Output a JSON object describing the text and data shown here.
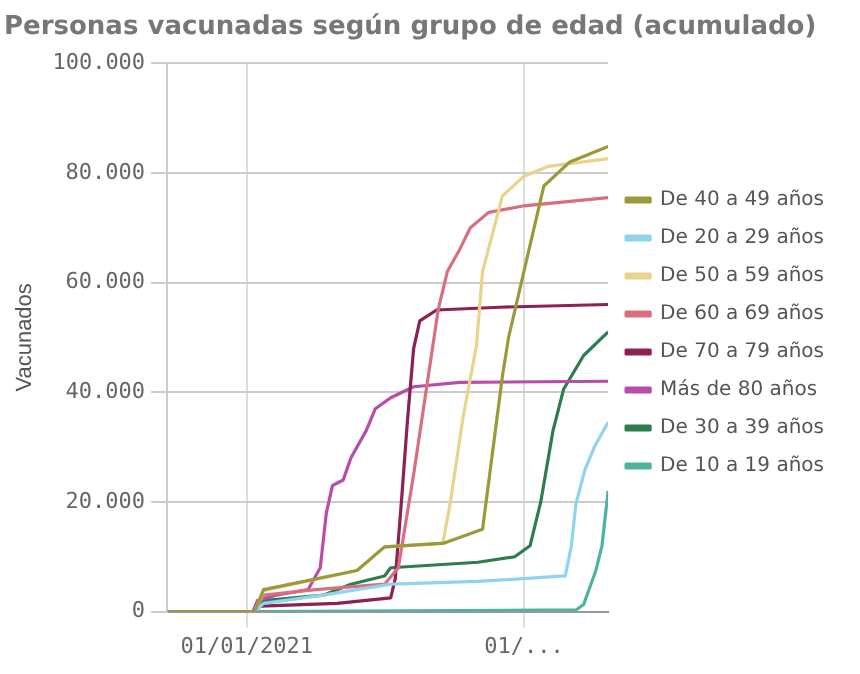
{
  "chart_data": {
    "type": "line",
    "title": "Personas vacunadas según grupo de edad (acumulado)",
    "ylabel": "Vacunados",
    "xlim": [
      "2020-11-10",
      "2021-08-25"
    ],
    "xticks": [
      {
        "value": "2021-01-01",
        "label": "01/01/2021"
      },
      {
        "value": "2021-07-01",
        "label": "01/..."
      }
    ],
    "ylim": [
      0,
      100000
    ],
    "yticks": [
      0,
      {
        "value": 20000,
        "label": "20.000"
      },
      {
        "value": 40000,
        "label": "40.000"
      },
      {
        "value": 60000,
        "label": "60.000"
      },
      {
        "value": 80000,
        "label": "80.000"
      },
      {
        "value": 100000,
        "label": "100.000"
      }
    ],
    "grid": true,
    "legend": "right",
    "marker": "none",
    "series": [
      {
        "name": "De 40 a 49 años",
        "color": "#9a9a3a",
        "x": [
          "2020-11-10",
          "2021-01-06",
          "2021-01-12",
          "2021-03-14",
          "2021-04-01",
          "2021-05-10",
          "2021-06-04",
          "2021-06-17",
          "2021-06-21",
          "2021-07-01",
          "2021-07-14",
          "2021-07-31",
          "2021-08-25"
        ],
        "values": [
          0,
          0,
          4000,
          7500,
          11800,
          12500,
          15000,
          43000,
          50000,
          62000,
          77600,
          82000,
          84800
        ]
      },
      {
        "name": "De 20 a 29 años",
        "color": "#8fd3ee",
        "x": [
          "2021-01-06",
          "2021-01-12",
          "2021-02-20",
          "2021-04-05",
          "2021-06-01",
          "2021-07-28",
          "2021-08-01",
          "2021-08-04",
          "2021-08-10",
          "2021-08-16",
          "2021-08-25"
        ],
        "values": [
          0,
          1500,
          3000,
          5000,
          5500,
          6500,
          12000,
          19700,
          26000,
          30000,
          34500
        ]
      },
      {
        "name": "De 50 a 59 años",
        "color": "#e8d48b",
        "x": [
          "2021-01-06",
          "2021-01-12",
          "2021-03-14",
          "2021-04-01",
          "2021-05-09",
          "2021-05-14",
          "2021-05-22",
          "2021-05-31",
          "2021-06-04",
          "2021-06-17",
          "2021-07-01",
          "2021-07-17",
          "2021-08-25"
        ],
        "values": [
          0,
          3800,
          7500,
          11800,
          12400,
          20000,
          35000,
          48500,
          62000,
          75800,
          79400,
          81200,
          82600
        ]
      },
      {
        "name": "De 60 a 69 años",
        "color": "#d86f80",
        "x": [
          "2021-01-06",
          "2021-01-12",
          "2021-02-15",
          "2021-04-01",
          "2021-04-10",
          "2021-04-20",
          "2021-04-28",
          "2021-05-06",
          "2021-05-12",
          "2021-05-20",
          "2021-05-27",
          "2021-06-08",
          "2021-07-01",
          "2021-08-25"
        ],
        "values": [
          0,
          3000,
          4000,
          5000,
          8000,
          25000,
          40000,
          55000,
          62000,
          66000,
          70000,
          72800,
          74000,
          75500
        ]
      },
      {
        "name": "De 70 a 79 años",
        "color": "#8b2252",
        "x": [
          "2021-01-06",
          "2021-01-10",
          "2021-03-01",
          "2021-04-05",
          "2021-04-08",
          "2021-04-12",
          "2021-04-16",
          "2021-04-20",
          "2021-04-24",
          "2021-05-05",
          "2021-06-15",
          "2021-08-25"
        ],
        "values": [
          0,
          1000,
          1500,
          2500,
          6000,
          20000,
          35000,
          48000,
          53000,
          55000,
          55500,
          56000
        ]
      },
      {
        "name": "Más de 80 años",
        "color": "#b84ca8",
        "x": [
          "2021-01-05",
          "2021-01-08",
          "2021-01-20",
          "2021-02-10",
          "2021-02-18",
          "2021-02-22",
          "2021-02-26",
          "2021-03-05",
          "2021-03-10",
          "2021-03-20",
          "2021-03-26",
          "2021-04-05",
          "2021-04-20",
          "2021-05-20",
          "2021-08-25"
        ],
        "values": [
          0,
          2000,
          3000,
          4000,
          8000,
          18000,
          23000,
          24000,
          28000,
          33000,
          37000,
          39000,
          41000,
          41800,
          42000
        ]
      },
      {
        "name": "De 30 a 39 años",
        "color": "#2e7d4f",
        "x": [
          "2021-01-06",
          "2021-01-12",
          "2021-02-20",
          "2021-03-10",
          "2021-04-01",
          "2021-04-05",
          "2021-06-01",
          "2021-06-25",
          "2021-07-05",
          "2021-07-12",
          "2021-07-20",
          "2021-07-27",
          "2021-08-09",
          "2021-08-25"
        ],
        "values": [
          0,
          2000,
          3000,
          5000,
          6500,
          8000,
          9000,
          10000,
          12000,
          20000,
          33000,
          40600,
          46700,
          51000
        ]
      },
      {
        "name": "De 10 a 19 años",
        "color": "#4db3a0",
        "x": [
          "2021-01-06",
          "2021-08-04",
          "2021-08-09",
          "2021-08-17",
          "2021-08-21",
          "2021-08-25"
        ],
        "values": [
          0,
          300,
          1300,
          7500,
          12000,
          22000
        ]
      }
    ]
  }
}
